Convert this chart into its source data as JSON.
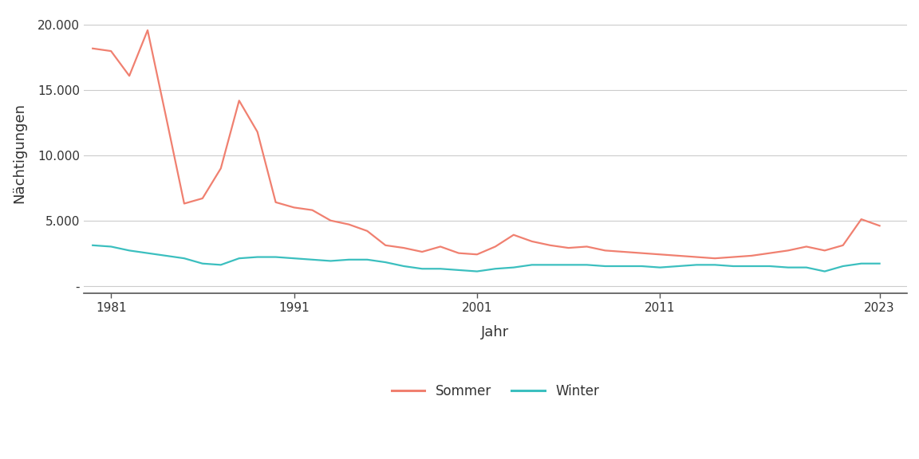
{
  "years": [
    1980,
    1981,
    1982,
    1983,
    1984,
    1985,
    1986,
    1987,
    1988,
    1989,
    1990,
    1991,
    1992,
    1993,
    1994,
    1995,
    1996,
    1997,
    1998,
    1999,
    2000,
    2001,
    2002,
    2003,
    2004,
    2005,
    2006,
    2007,
    2008,
    2009,
    2010,
    2011,
    2012,
    2013,
    2014,
    2015,
    2016,
    2017,
    2018,
    2019,
    2020,
    2021,
    2022,
    2023
  ],
  "sommer": [
    18200,
    18000,
    16100,
    19600,
    13000,
    6300,
    6700,
    9000,
    14200,
    11800,
    6400,
    6000,
    5800,
    5000,
    4700,
    4200,
    3100,
    2900,
    2600,
    3000,
    2500,
    2400,
    3000,
    3900,
    3400,
    3100,
    2900,
    3000,
    2700,
    2600,
    2500,
    2400,
    2300,
    2200,
    2100,
    2200,
    2300,
    2500,
    2700,
    3000,
    2700,
    3100,
    5100,
    4600
  ],
  "winter": [
    3100,
    3000,
    2700,
    2500,
    2300,
    2100,
    1700,
    1600,
    2100,
    2200,
    2200,
    2100,
    2000,
    1900,
    2000,
    2000,
    1800,
    1500,
    1300,
    1300,
    1200,
    1100,
    1300,
    1400,
    1600,
    1600,
    1600,
    1600,
    1500,
    1500,
    1500,
    1400,
    1500,
    1600,
    1600,
    1500,
    1500,
    1500,
    1400,
    1400,
    1100,
    1500,
    1700,
    1700
  ],
  "sommer_color": "#F08070",
  "winter_color": "#3BBFBF",
  "xlabel": "Jahr",
  "ylabel": "Nächtigungen",
  "xticks": [
    1981,
    1991,
    2001,
    2011,
    2023
  ],
  "yticks": [
    0,
    5000,
    10000,
    15000,
    20000
  ],
  "ylim": [
    -600,
    21000
  ],
  "xlim": [
    1979.5,
    2024.5
  ],
  "background_color": "#ffffff",
  "plot_bg_color": "#ffffff",
  "grid_color": "#cccccc",
  "legend_labels": [
    "Sommer",
    "Winter"
  ],
  "line_width": 1.6
}
